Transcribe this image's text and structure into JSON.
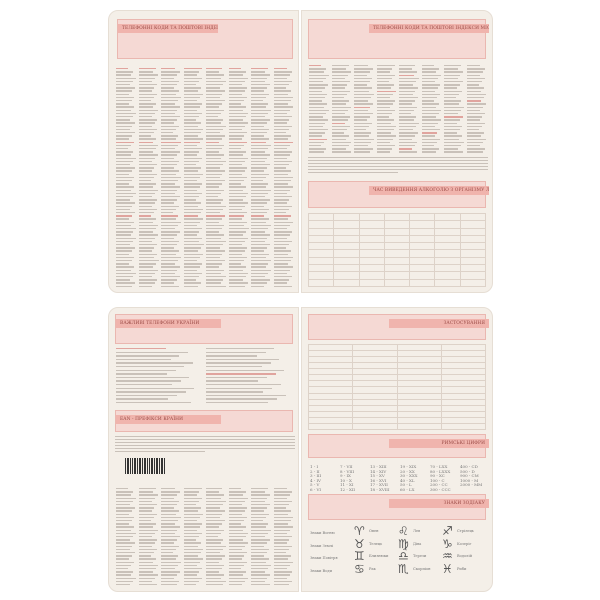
{
  "pages": {
    "phone_codes_title": "ТЕЛЕФОННІ КОДИ ТА ПОШТОВІ ІНДЕКСИ МІСТ УКРАЇНИ",
    "alcohol_title": "ЧАС ВИВЕДЕННЯ АЛКОГОЛЮ З ОРГАНІЗМУ ЛЮДИНИ",
    "important_phones_title": "ВАЖЛИВІ ТЕЛЕФОНИ УКРАЇНИ",
    "ean_title": "EAN - ПРЕФІКСИ КРАЇНИ",
    "application_title": "ЗАСТОСУВАННЯ",
    "roman_title": "РИМСЬКІ ЦИФРИ",
    "zodiac_title": "ЗНАКИ ЗОДІАКУ"
  },
  "roman": [
    "1 - I",
    "2 - II",
    "3 - III",
    "4 - IV",
    "5 - V",
    "6 - VI",
    "7 - VII",
    "8 - VIII",
    "9 - IX",
    "10 - X",
    "11 - XI",
    "12 - XII",
    "13 - XIII",
    "14 - XIV",
    "15 - XV",
    "16 - XVI",
    "17 - XVII",
    "18 - XVIII",
    "19 - XIX",
    "20 - XX",
    "30 - XXX",
    "40 - XL",
    "50 - L",
    "60 - LX",
    "70 - LXX",
    "80 - LXXX",
    "90 - XC",
    "100 - C",
    "200 - CC",
    "300 - CCC",
    "400 - CD",
    "500 - D",
    "900 - CM",
    "1000 - M",
    "2000 - MM"
  ],
  "zodiac": {
    "groups": [
      "Знаки Вогню",
      "Знаки Землі",
      "Знаки Повітря",
      "Знаки Води"
    ],
    "signs": [
      {
        "glyph": "♈",
        "name": "Овен"
      },
      {
        "glyph": "♌",
        "name": "Лев"
      },
      {
        "glyph": "♐",
        "name": "Стрілець"
      },
      {
        "glyph": "♉",
        "name": "Телець"
      },
      {
        "glyph": "♍",
        "name": "Діва"
      },
      {
        "glyph": "♑",
        "name": "Козеріг"
      },
      {
        "glyph": "♊",
        "name": "Близнюки"
      },
      {
        "glyph": "♎",
        "name": "Терези"
      },
      {
        "glyph": "♒",
        "name": "Водолій"
      },
      {
        "glyph": "♋",
        "name": "Рак"
      },
      {
        "glyph": "♏",
        "name": "Скорпіон"
      },
      {
        "glyph": "♓",
        "name": "Риби"
      }
    ]
  },
  "colors": {
    "page": "#f4efe8",
    "header_box": "#f5d9d4",
    "header_stripe": "#f0b4ad"
  }
}
